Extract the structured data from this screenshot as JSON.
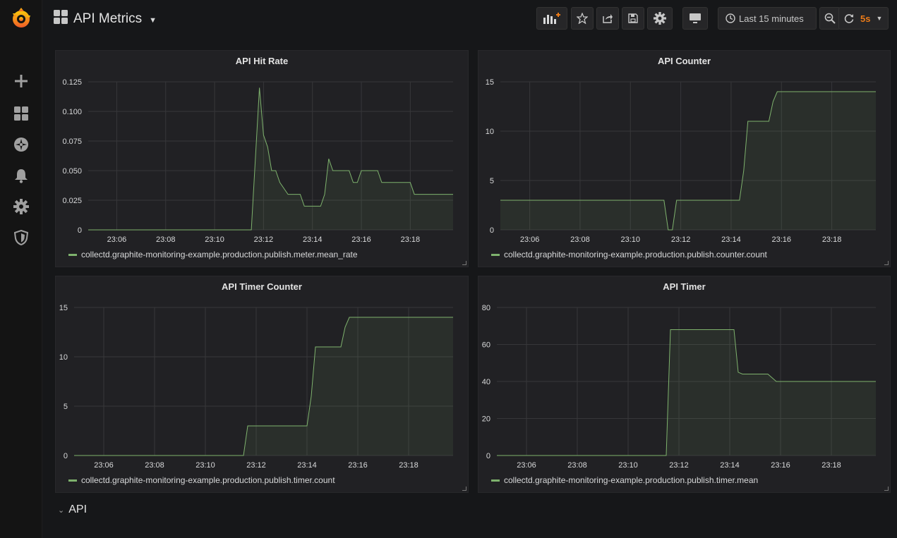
{
  "header": {
    "title": "API Metrics",
    "time_range": "Last 15 minutes",
    "refresh_interval": "5s"
  },
  "sidebar": {
    "items": [
      {
        "icon": "plus-icon"
      },
      {
        "icon": "dashboards-icon"
      },
      {
        "icon": "explore-compass-icon"
      },
      {
        "icon": "alerting-bell-icon"
      },
      {
        "icon": "configuration-gear-icon"
      },
      {
        "icon": "server-admin-shield-icon"
      }
    ]
  },
  "colors": {
    "series": "#7eb26d",
    "accent": "#eb7b18",
    "background": "#161719",
    "panel": "#212124"
  },
  "panels": [
    {
      "title": "API Hit Rate",
      "legend": "collectd.graphite-monitoring-example.production.publish.meter.mean_rate"
    },
    {
      "title": "API Counter",
      "legend": "collectd.graphite-monitoring-example.production.publish.counter.count"
    },
    {
      "title": "API Timer Counter",
      "legend": "collectd.graphite-monitoring-example.production.publish.timer.count"
    },
    {
      "title": "API Timer",
      "legend": "collectd.graphite-monitoring-example.production.publish.timer.mean"
    }
  ],
  "row": {
    "title": "API"
  },
  "chart_data": [
    {
      "type": "area",
      "title": "API Hit Rate",
      "x_ticks": [
        "23:06",
        "23:08",
        "23:10",
        "23:12",
        "23:14",
        "23:16",
        "23:18"
      ],
      "y_ticks": [
        "0",
        "0.025",
        "0.050",
        "0.075",
        "0.100",
        "0.125"
      ],
      "xlim": [
        "23:04:50",
        "23:19:45"
      ],
      "ylim": [
        0,
        0.125
      ],
      "grid": true,
      "series": [
        {
          "name": "collectd.graphite-monitoring-example.production.publish.meter.mean_rate",
          "x": [
            "23:04:50",
            "23:11:30",
            "23:11:50",
            "23:12:00",
            "23:12:10",
            "23:12:20",
            "23:12:30",
            "23:12:40",
            "23:13:00",
            "23:13:30",
            "23:13:40",
            "23:14:20",
            "23:14:30",
            "23:14:40",
            "23:14:50",
            "23:15:30",
            "23:15:40",
            "23:15:50",
            "23:16:00",
            "23:16:40",
            "23:16:50",
            "23:17:30",
            "23:18:00",
            "23:18:10",
            "23:19:45"
          ],
          "y": [
            0,
            0,
            0.12,
            0.08,
            0.07,
            0.05,
            0.05,
            0.04,
            0.03,
            0.03,
            0.02,
            0.02,
            0.03,
            0.06,
            0.05,
            0.05,
            0.04,
            0.04,
            0.05,
            0.05,
            0.04,
            0.04,
            0.04,
            0.03,
            0.03
          ]
        }
      ]
    },
    {
      "type": "area",
      "title": "API Counter",
      "x_ticks": [
        "23:06",
        "23:08",
        "23:10",
        "23:12",
        "23:14",
        "23:16",
        "23:18"
      ],
      "y_ticks": [
        "0",
        "5",
        "10",
        "15"
      ],
      "xlim": [
        "23:04:50",
        "23:19:45"
      ],
      "ylim": [
        0,
        15
      ],
      "grid": true,
      "series": [
        {
          "name": "collectd.graphite-monitoring-example.production.publish.counter.count",
          "x": [
            "23:04:50",
            "23:11:20",
            "23:11:30",
            "23:11:40",
            "23:11:50",
            "23:14:20",
            "23:14:30",
            "23:14:40",
            "23:15:30",
            "23:15:40",
            "23:15:50",
            "23:19:45"
          ],
          "y": [
            3,
            3,
            0,
            0,
            3,
            3,
            6,
            11,
            11,
            13,
            14,
            14
          ]
        }
      ]
    },
    {
      "type": "area",
      "title": "API Timer Counter",
      "x_ticks": [
        "23:06",
        "23:08",
        "23:10",
        "23:12",
        "23:14",
        "23:16",
        "23:18"
      ],
      "y_ticks": [
        "0",
        "5",
        "10",
        "15"
      ],
      "xlim": [
        "23:04:50",
        "23:19:45"
      ],
      "ylim": [
        0,
        15
      ],
      "grid": true,
      "series": [
        {
          "name": "collectd.graphite-monitoring-example.production.publish.timer.count",
          "x": [
            "23:04:50",
            "23:11:30",
            "23:11:40",
            "23:14:00",
            "23:14:10",
            "23:14:20",
            "23:15:20",
            "23:15:30",
            "23:15:40",
            "23:19:45"
          ],
          "y": [
            0,
            0,
            3,
            3,
            6,
            11,
            11,
            13,
            14,
            14
          ]
        }
      ]
    },
    {
      "type": "area",
      "title": "API Timer",
      "x_ticks": [
        "23:06",
        "23:08",
        "23:10",
        "23:12",
        "23:14",
        "23:16",
        "23:18"
      ],
      "y_ticks": [
        "0",
        "20",
        "40",
        "60",
        "80"
      ],
      "xlim": [
        "23:04:50",
        "23:19:45"
      ],
      "ylim": [
        0,
        80
      ],
      "grid": true,
      "series": [
        {
          "name": "collectd.graphite-monitoring-example.production.publish.timer.mean",
          "x": [
            "23:04:50",
            "23:11:30",
            "23:11:40",
            "23:14:10",
            "23:14:20",
            "23:14:30",
            "23:15:30",
            "23:15:40",
            "23:15:50",
            "23:19:45"
          ],
          "y": [
            0,
            0,
            68,
            68,
            45,
            44,
            44,
            42,
            40,
            40
          ]
        }
      ]
    }
  ]
}
